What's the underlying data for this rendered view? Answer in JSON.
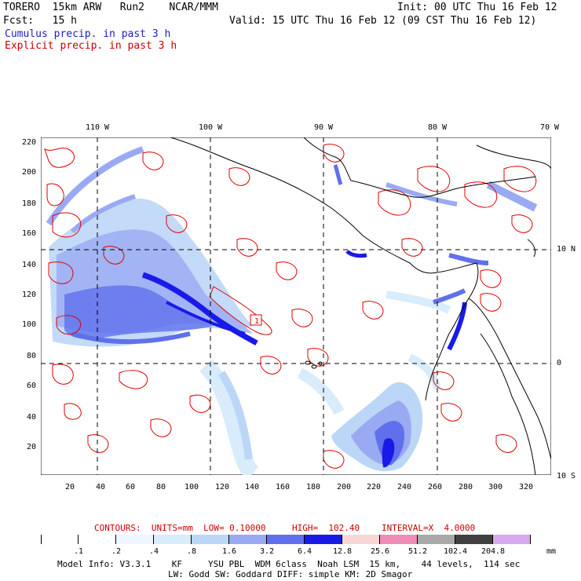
{
  "header": {
    "model_title": "TORERO  15km ARW   Run2    NCAR/MMM",
    "init": "Init: 00 UTC Thu 16 Feb 12",
    "fcst": "Fcst:   15 h",
    "valid": "Valid: 15 UTC Thu 16 Feb 12 (09 CST Thu 16 Feb 12)",
    "cumulus_label": "Cumulus precip. in past 3 h",
    "explicit_label": "Explicit precip. in past 3 h"
  },
  "colors": {
    "cumulus": "#2020c0",
    "explicit": "#e00000",
    "contour": "#e00000",
    "grid": "#000000",
    "coast": "#000000"
  },
  "map": {
    "lon_labels": [
      "110 W",
      "100 W",
      "90 W",
      "80 W",
      "70 W"
    ],
    "lat_labels": [
      "10 N",
      "0",
      "10 S"
    ],
    "x_ticks": [
      "20",
      "40",
      "60",
      "80",
      "100",
      "120",
      "140",
      "160",
      "180",
      "200",
      "220",
      "240",
      "260",
      "280",
      "300",
      "320"
    ],
    "y_ticks": [
      "220",
      "200",
      "180",
      "160",
      "140",
      "120",
      "100",
      "80",
      "60",
      "40",
      "20"
    ],
    "contour_label": "1"
  },
  "contour_info": {
    "text_units": "CONTOURS:  UNITS=mm  LOW= 0.10000",
    "text_high": "HIGH=  102.40",
    "text_interval": "INTERVAL=X  4.0000"
  },
  "colorbar": {
    "ticks": [
      ".1",
      ".2",
      ".4",
      ".8",
      "1.6",
      "3.2",
      "6.4",
      "12.8",
      "25.6",
      "51.2",
      "102.4",
      "204.8"
    ],
    "unit": "mm",
    "colors": [
      "#ffffff",
      "#ffffff",
      "#eef6ff",
      "#d8ecfb",
      "#bcd6f7",
      "#9aaaf2",
      "#6070ec",
      "#1a1ae8",
      "#f8d6d6",
      "#f08cb8",
      "#a8a8a8",
      "#404040",
      "#d8a8f0"
    ]
  },
  "footer": {
    "line1": "Model Info: V3.3.1    KF     YSU PBL  WDM 6class  Noah LSM  15 km,    44 levels,  114 sec",
    "line2": "LW: Godd SW: Goddard DIFF: simple KM: 2D Smagor"
  }
}
